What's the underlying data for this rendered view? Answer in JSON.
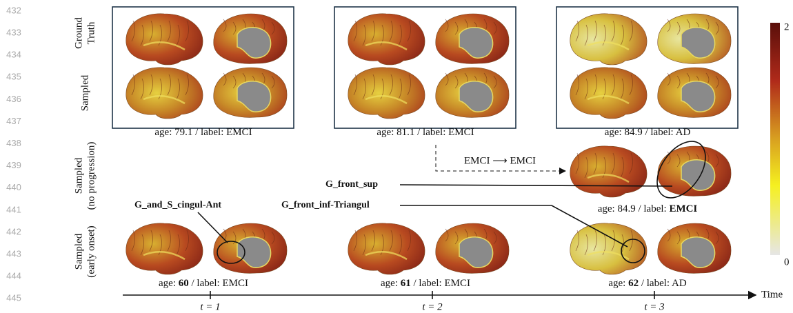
{
  "line_numbers": [
    "432",
    "433",
    "434",
    "435",
    "436",
    "437",
    "438",
    "439",
    "440",
    "441",
    "442",
    "443",
    "444",
    "445"
  ],
  "row_labels": [
    [
      "Ground",
      "Truth"
    ],
    [
      "Sampled"
    ],
    [
      "Sampled",
      "(no progression)"
    ],
    [
      "Sampled",
      "(early onset)"
    ]
  ],
  "captions": {
    "gt": [
      [
        {
          "text": "age: 79.1 / label: EMCI",
          "bold": false
        }
      ],
      [
        {
          "text": "age: 81.1 / label: EMCI",
          "bold": false
        }
      ],
      [
        {
          "text": "age: 84.9 / label: AD",
          "bold": false
        }
      ]
    ],
    "no_progression": [
      {
        "text": "age: 84.9 / label: ",
        "bold": false
      },
      {
        "text": "EMCI",
        "bold": true
      }
    ],
    "early_onset": [
      [
        {
          "text": "age: ",
          "bold": false
        },
        {
          "text": "60",
          "bold": true
        },
        {
          "text": " / label: EMCI",
          "bold": false
        }
      ],
      [
        {
          "text": "age: ",
          "bold": false
        },
        {
          "text": "61",
          "bold": true
        },
        {
          "text": " / label: EMCI",
          "bold": false
        }
      ],
      [
        {
          "text": "age: ",
          "bold": false
        },
        {
          "text": "62",
          "bold": true
        },
        {
          "text": " / label: AD",
          "bold": false
        }
      ]
    ]
  },
  "transition": "EMCI ⟶ EMCI",
  "annotations": {
    "front_sup": "G_front_sup",
    "cingul": "G_and_S_cingul-Ant",
    "front_inf": "G_front_inf-Triangul"
  },
  "colorbar": {
    "max": "2",
    "min": "0"
  },
  "timeline": {
    "label": "Time",
    "ticks": [
      "t = 1",
      "t = 2",
      "t = 3"
    ]
  }
}
